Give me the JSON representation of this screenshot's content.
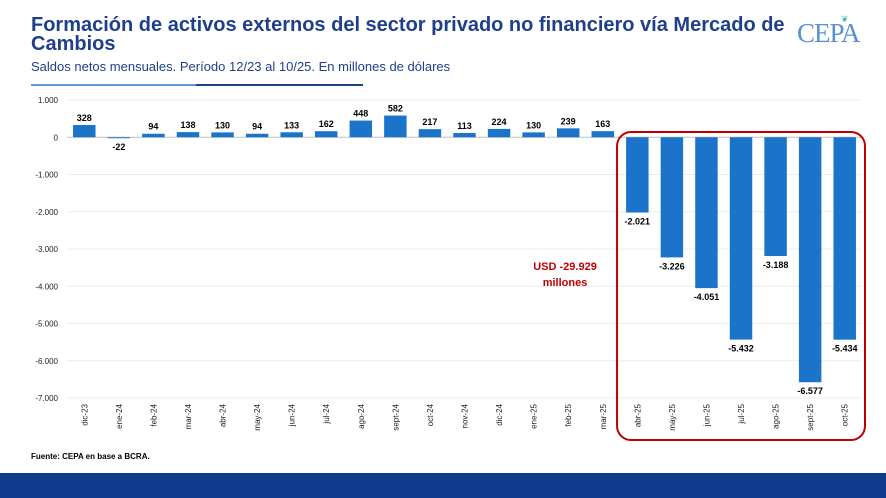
{
  "header": {
    "title": "Formación de activos externos del sector privado no financiero vía Mercado de Cambios",
    "subtitle": "Saldos netos mensuales. Período 12/23 al 10/25. En millones de dólares",
    "logo_text": "CEPA"
  },
  "footer": {
    "source": "Fuente: CEPA en base a BCRA."
  },
  "colors": {
    "bar": "#1b74c9",
    "title": "#1f3f8c",
    "highlight": "#c00000",
    "footer_bar": "#103a8c"
  },
  "chart_data": {
    "type": "bar",
    "title": "Formación de activos externos del sector privado no financiero vía Mercado de Cambios",
    "xlabel": "",
    "ylabel": "",
    "ylim": [
      -7000,
      1000
    ],
    "yticks": [
      1000,
      0,
      -1000,
      -2000,
      -3000,
      -4000,
      -5000,
      -6000,
      -7000
    ],
    "ytick_labels": [
      "1.000",
      "0",
      "-1.000",
      "-2.000",
      "-3.000",
      "-4.000",
      "-5.000",
      "-6.000",
      "-7.000"
    ],
    "categories": [
      "dic-23",
      "ene-24",
      "feb-24",
      "mar-24",
      "abr-24",
      "may-24",
      "jun-24",
      "jul-24",
      "ago-24",
      "sept-24",
      "oct-24",
      "nov-24",
      "dic-24",
      "ene-25",
      "feb-25",
      "mar-25",
      "abr-25",
      "may-25",
      "jun-25",
      "jul-25",
      "ago-25",
      "sept-25",
      "oct-25"
    ],
    "values": [
      328,
      -22,
      94,
      138,
      130,
      94,
      133,
      162,
      448,
      582,
      217,
      113,
      224,
      130,
      239,
      163,
      -2021,
      -3226,
      -4051,
      -5432,
      -3188,
      -6577,
      -5434
    ],
    "value_labels": [
      "328",
      "-22",
      "94",
      "138",
      "130",
      "94",
      "133",
      "162",
      "448",
      "582",
      "217",
      "113",
      "224",
      "130",
      "239",
      "163",
      "-2.021",
      "-3.226",
      "-4.051",
      "-5.432",
      "-3.188",
      "-6.577",
      "-5.434"
    ],
    "highlight": {
      "from_index": 16,
      "to_index": 22,
      "label_line1": "USD -29.929",
      "label_line2": "millones"
    }
  }
}
